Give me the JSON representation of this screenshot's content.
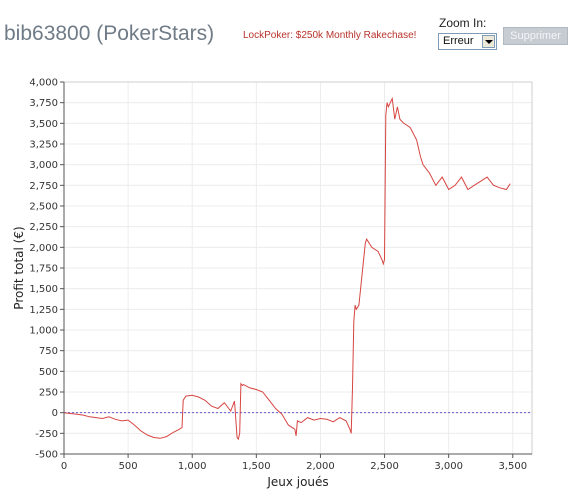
{
  "header": {
    "title": "bib63800 (PokerStars)",
    "promo_link": "LockPoker: $250k Monthly Rakechase!",
    "zoom_label": "Zoom In:",
    "zoom_value": "Erreur",
    "delete_label": "Supprimer"
  },
  "colors": {
    "series": "#d64541",
    "zero_line": "#6a5acd",
    "promo": "#b8332b",
    "title": "#6f7b86"
  },
  "chart_data": {
    "type": "line",
    "title": "",
    "xlabel": "Jeux joués",
    "ylabel": "Profit total (€)",
    "xlim": [
      0,
      3650
    ],
    "ylim": [
      -500,
      4000
    ],
    "x_ticks": [
      0,
      500,
      1000,
      1500,
      2000,
      2500,
      3000,
      3500
    ],
    "x_tick_labels": [
      "0",
      "500",
      "1,000",
      "1,500",
      "2,000",
      "2,500",
      "3,000",
      "3,500"
    ],
    "y_ticks": [
      -500,
      -250,
      0,
      250,
      500,
      750,
      1000,
      1250,
      1500,
      1750,
      2000,
      2250,
      2500,
      2750,
      3000,
      3250,
      3500,
      3750,
      4000
    ],
    "y_tick_labels": [
      "-500",
      "-250",
      "0",
      "250",
      "500",
      "750",
      "1,000",
      "1,250",
      "1,500",
      "1,750",
      "2,000",
      "2,250",
      "2,500",
      "2,750",
      "3,000",
      "3,250",
      "3,500",
      "3,750",
      "4,000"
    ],
    "reference_line_y": 0,
    "series": [
      {
        "x": [
          0,
          50,
          100,
          150,
          200,
          250,
          300,
          350,
          400,
          450,
          500,
          550,
          600,
          650,
          700,
          750,
          800,
          850,
          900,
          920,
          930,
          950,
          1000,
          1050,
          1100,
          1150,
          1200,
          1250,
          1300,
          1330,
          1350,
          1360,
          1370,
          1380,
          1390,
          1400,
          1450,
          1500,
          1550,
          1600,
          1650,
          1700,
          1750,
          1800,
          1810,
          1820,
          1850,
          1900,
          1950,
          2000,
          2050,
          2100,
          2150,
          2200,
          2230,
          2240,
          2250,
          2260,
          2270,
          2280,
          2300,
          2350,
          2360,
          2400,
          2450,
          2480,
          2490,
          2500,
          2510,
          2520,
          2530,
          2560,
          2580,
          2600,
          2620,
          2650,
          2700,
          2750,
          2780,
          2800,
          2850,
          2900,
          2950,
          3000,
          3050,
          3100,
          3150,
          3200,
          3250,
          3300,
          3350,
          3400,
          3450,
          3480
        ],
        "y": [
          0,
          -10,
          -20,
          -30,
          -50,
          -60,
          -70,
          -50,
          -80,
          -100,
          -90,
          -150,
          -220,
          -270,
          -300,
          -310,
          -290,
          -240,
          -200,
          -180,
          150,
          200,
          210,
          190,
          150,
          80,
          50,
          120,
          20,
          140,
          -300,
          -320,
          -250,
          350,
          330,
          340,
          300,
          280,
          250,
          150,
          50,
          -20,
          -150,
          -200,
          -280,
          -100,
          -120,
          -60,
          -90,
          -70,
          -80,
          -110,
          -60,
          -100,
          -200,
          -250,
          300,
          1100,
          1300,
          1250,
          1300,
          2050,
          2100,
          2000,
          1950,
          1850,
          1800,
          1850,
          3600,
          3750,
          3700,
          3800,
          3550,
          3700,
          3550,
          3500,
          3450,
          3300,
          3100,
          3000,
          2900,
          2750,
          2850,
          2700,
          2750,
          2850,
          2700,
          2750,
          2800,
          2850,
          2750,
          2720,
          2700,
          2770
        ]
      }
    ]
  }
}
